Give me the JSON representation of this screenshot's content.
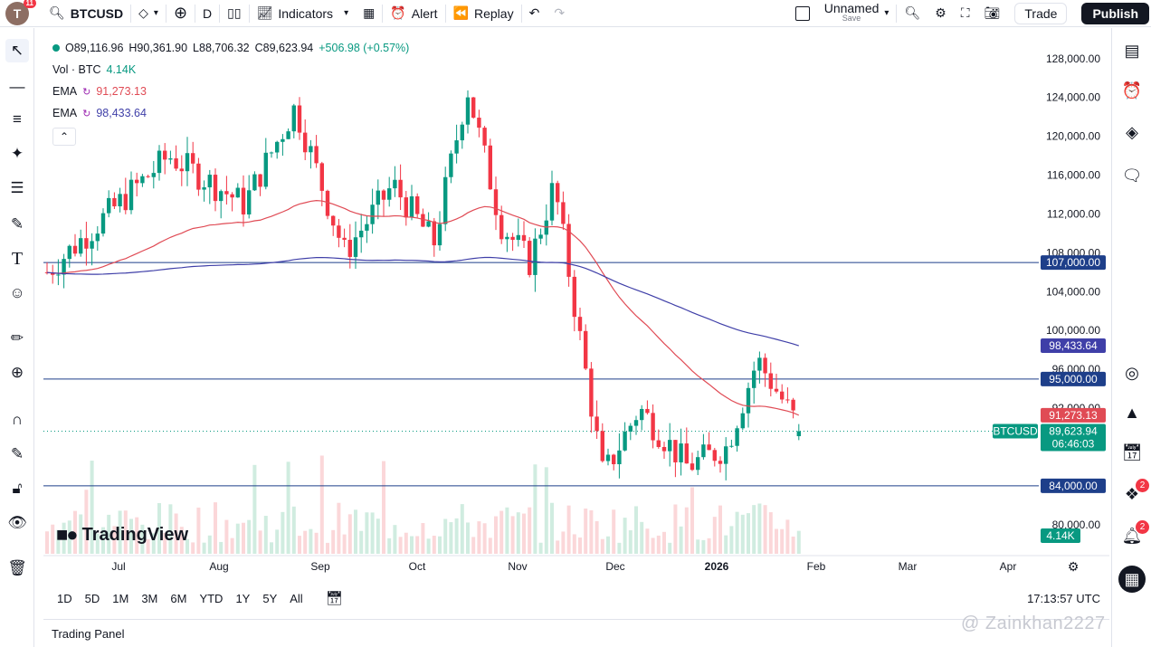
{
  "topbar": {
    "avatar_letter": "T",
    "avatar_badge": "11",
    "symbol": "BTCUSD",
    "interval": "D",
    "indicators_label": "Indicators",
    "alert_label": "Alert",
    "replay_label": "Replay",
    "layout_name": "Unnamed",
    "layout_save": "Save",
    "trade_label": "Trade",
    "publish_label": "Publish"
  },
  "legend": {
    "ohlc": {
      "o": "O89,116.96",
      "h": "H90,361.90",
      "l": "L88,706.32",
      "c": "C89,623.94",
      "chg": "+506.98 (+0.57%)"
    },
    "vol": {
      "label": "Vol · BTC",
      "value": "4.14K"
    },
    "ema1": {
      "label": "EMA",
      "value": "91,273.13",
      "color": "#e04b55"
    },
    "ema2": {
      "label": "EMA",
      "value": "98,433.64",
      "color": "#3f3fa8"
    },
    "collapse_icon": "chevron-up-icon"
  },
  "brand": {
    "logo_text": "TradingView"
  },
  "price_axis": {
    "ticks": [
      {
        "value": 128000,
        "label": "128,000.00"
      },
      {
        "value": 124000,
        "label": "124,000.00"
      },
      {
        "value": 120000,
        "label": "120,000.00"
      },
      {
        "value": 116000,
        "label": "116,000.00"
      },
      {
        "value": 112000,
        "label": "112,000.00"
      },
      {
        "value": 108000,
        "label": "108,000.00"
      },
      {
        "value": 104000,
        "label": "104,000.00"
      },
      {
        "value": 100000,
        "label": "100,000.00"
      },
      {
        "value": 96000,
        "label": "96,000.00"
      },
      {
        "value": 92000,
        "label": "92,000.00"
      },
      {
        "value": 80000,
        "label": "80,000.00"
      }
    ],
    "hlines": [
      {
        "value": 107000,
        "label": "107,000.00"
      },
      {
        "value": 95000,
        "label": "95,000.00"
      },
      {
        "value": 84000,
        "label": "84,000.00"
      }
    ],
    "ema2_tag": "98,433.64",
    "ema1_tag": "91,273.13",
    "symbol_tag": "BTCUSD",
    "last_price": "89,623.94",
    "countdown": "06:46:03",
    "vol_tag": "4.14K"
  },
  "time_axis": {
    "labels": [
      "Jul",
      "Aug",
      "Sep",
      "Oct",
      "Nov",
      "Dec",
      "2026",
      "Feb",
      "Mar",
      "Apr"
    ]
  },
  "bottombar": {
    "ranges": [
      "1D",
      "5D",
      "1M",
      "3M",
      "6M",
      "YTD",
      "1Y",
      "5Y",
      "All"
    ],
    "clock": "17:13:57 UTC"
  },
  "trading_panel": "Trading Panel",
  "watermark": "@ Zainkhan2227",
  "colors": {
    "up": "#089981",
    "down": "#f23645",
    "hline": "#2962ff",
    "ema_fast": "#e04b55",
    "ema_slow": "#3f3fa8"
  },
  "chart_data": {
    "type": "candlestick",
    "symbol": "BTCUSD",
    "interval": "D",
    "x_labels": [
      "Jul",
      "Aug",
      "Sep",
      "Oct",
      "Nov",
      "Dec",
      "2026",
      "Feb",
      "Mar",
      "Apr"
    ],
    "ylim": [
      77000,
      130500
    ],
    "horizontal_lines": [
      107000,
      95000,
      84000
    ],
    "waypoints": [
      {
        "month": "Jun",
        "price": 106000
      },
      {
        "month": "Jul",
        "price": 118000
      },
      {
        "month": "Aug",
        "price": 113000
      },
      {
        "month": "Aug",
        "price": 123000
      },
      {
        "month": "Sep",
        "price": 108000
      },
      {
        "month": "Sep",
        "price": 115000
      },
      {
        "month": "Oct",
        "price": 109000
      },
      {
        "month": "Oct",
        "price": 125000
      },
      {
        "month": "Oct",
        "price": 111000
      },
      {
        "month": "Nov",
        "price": 107000
      },
      {
        "month": "Nov",
        "price": 115000
      },
      {
        "month": "Nov",
        "price": 100000
      },
      {
        "month": "Nov",
        "price": 85000
      },
      {
        "month": "Dec",
        "price": 92000
      },
      {
        "month": "Dec",
        "price": 86000
      },
      {
        "month": "Jan",
        "price": 88000
      },
      {
        "month": "Jan",
        "price": 97000
      },
      {
        "month": "Jan",
        "price": 89624
      }
    ],
    "last": {
      "open": 89116.96,
      "high": 90361.9,
      "low": 88706.32,
      "close": 89623.94,
      "change": 506.98,
      "change_pct": 0.57
    },
    "ema_fast_last": 91273.13,
    "ema_slow_last": 98433.64,
    "volume_last": "4.14K"
  }
}
